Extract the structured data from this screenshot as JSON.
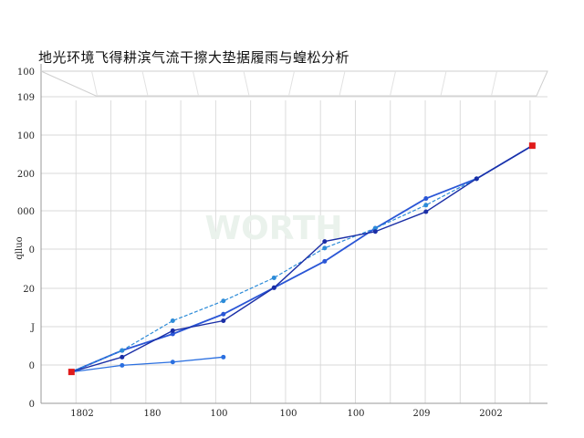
{
  "chart_data": {
    "type": "line",
    "title": "地光环境飞得耕滨气流干擦大垫据履雨与蝗松分析",
    "xlabel": "",
    "ylabel": "",
    "x_tick_labels": [
      "1802",
      "180",
      "100",
      "100",
      "100",
      "209",
      "2002"
    ],
    "y_tick_labels": [
      "0",
      "0",
      "J",
      "20",
      "0",
      "000",
      "200",
      "100",
      "109",
      "100"
    ],
    "y_axis_side_label": "qlluo",
    "xlim": [
      0,
      10
    ],
    "ylim": [
      0,
      10
    ],
    "grid": true,
    "legend": "none",
    "series": [
      {
        "color": "#2a56d6",
        "line_width": 1.8,
        "marker": "circle",
        "points": [
          [
            0.6,
            0.95
          ],
          [
            1.6,
            1.6
          ],
          [
            2.6,
            2.1
          ],
          [
            3.6,
            2.7
          ],
          [
            4.6,
            3.5
          ],
          [
            5.6,
            4.3
          ],
          [
            6.6,
            5.3
          ],
          [
            7.6,
            6.2
          ],
          [
            8.6,
            6.8
          ],
          [
            9.7,
            7.8
          ]
        ]
      },
      {
        "color": "#2c8bd8",
        "line_width": 1.2,
        "marker": "circle",
        "dashed": true,
        "points": [
          [
            0.6,
            0.95
          ],
          [
            1.6,
            1.6
          ],
          [
            2.6,
            2.5
          ],
          [
            3.6,
            3.1
          ],
          [
            4.6,
            3.8
          ],
          [
            5.6,
            4.7
          ],
          [
            6.6,
            5.3
          ],
          [
            7.6,
            6.0
          ],
          [
            8.6,
            6.8
          ],
          [
            9.7,
            7.8
          ]
        ]
      },
      {
        "color": "#1a2ea6",
        "line_width": 1.4,
        "marker": "circle",
        "points": [
          [
            0.6,
            0.95
          ],
          [
            1.6,
            1.4
          ],
          [
            2.6,
            2.2
          ],
          [
            3.6,
            2.5
          ],
          [
            4.6,
            3.5
          ],
          [
            5.6,
            4.9
          ],
          [
            6.6,
            5.2
          ],
          [
            7.6,
            5.8
          ],
          [
            8.6,
            6.8
          ],
          [
            9.7,
            7.8
          ]
        ]
      },
      {
        "color": "#2a6fe0",
        "line_width": 1.3,
        "marker": "circle",
        "points": [
          [
            0.6,
            0.95
          ],
          [
            1.6,
            1.15
          ],
          [
            2.6,
            1.25
          ],
          [
            3.6,
            1.4
          ]
        ]
      }
    ],
    "endpoints": [
      {
        "x": 0.6,
        "y": 0.95,
        "color": "#e01b1b"
      },
      {
        "x": 9.7,
        "y": 7.8,
        "color": "#e01b1b"
      }
    ],
    "watermark": "WORTH"
  }
}
